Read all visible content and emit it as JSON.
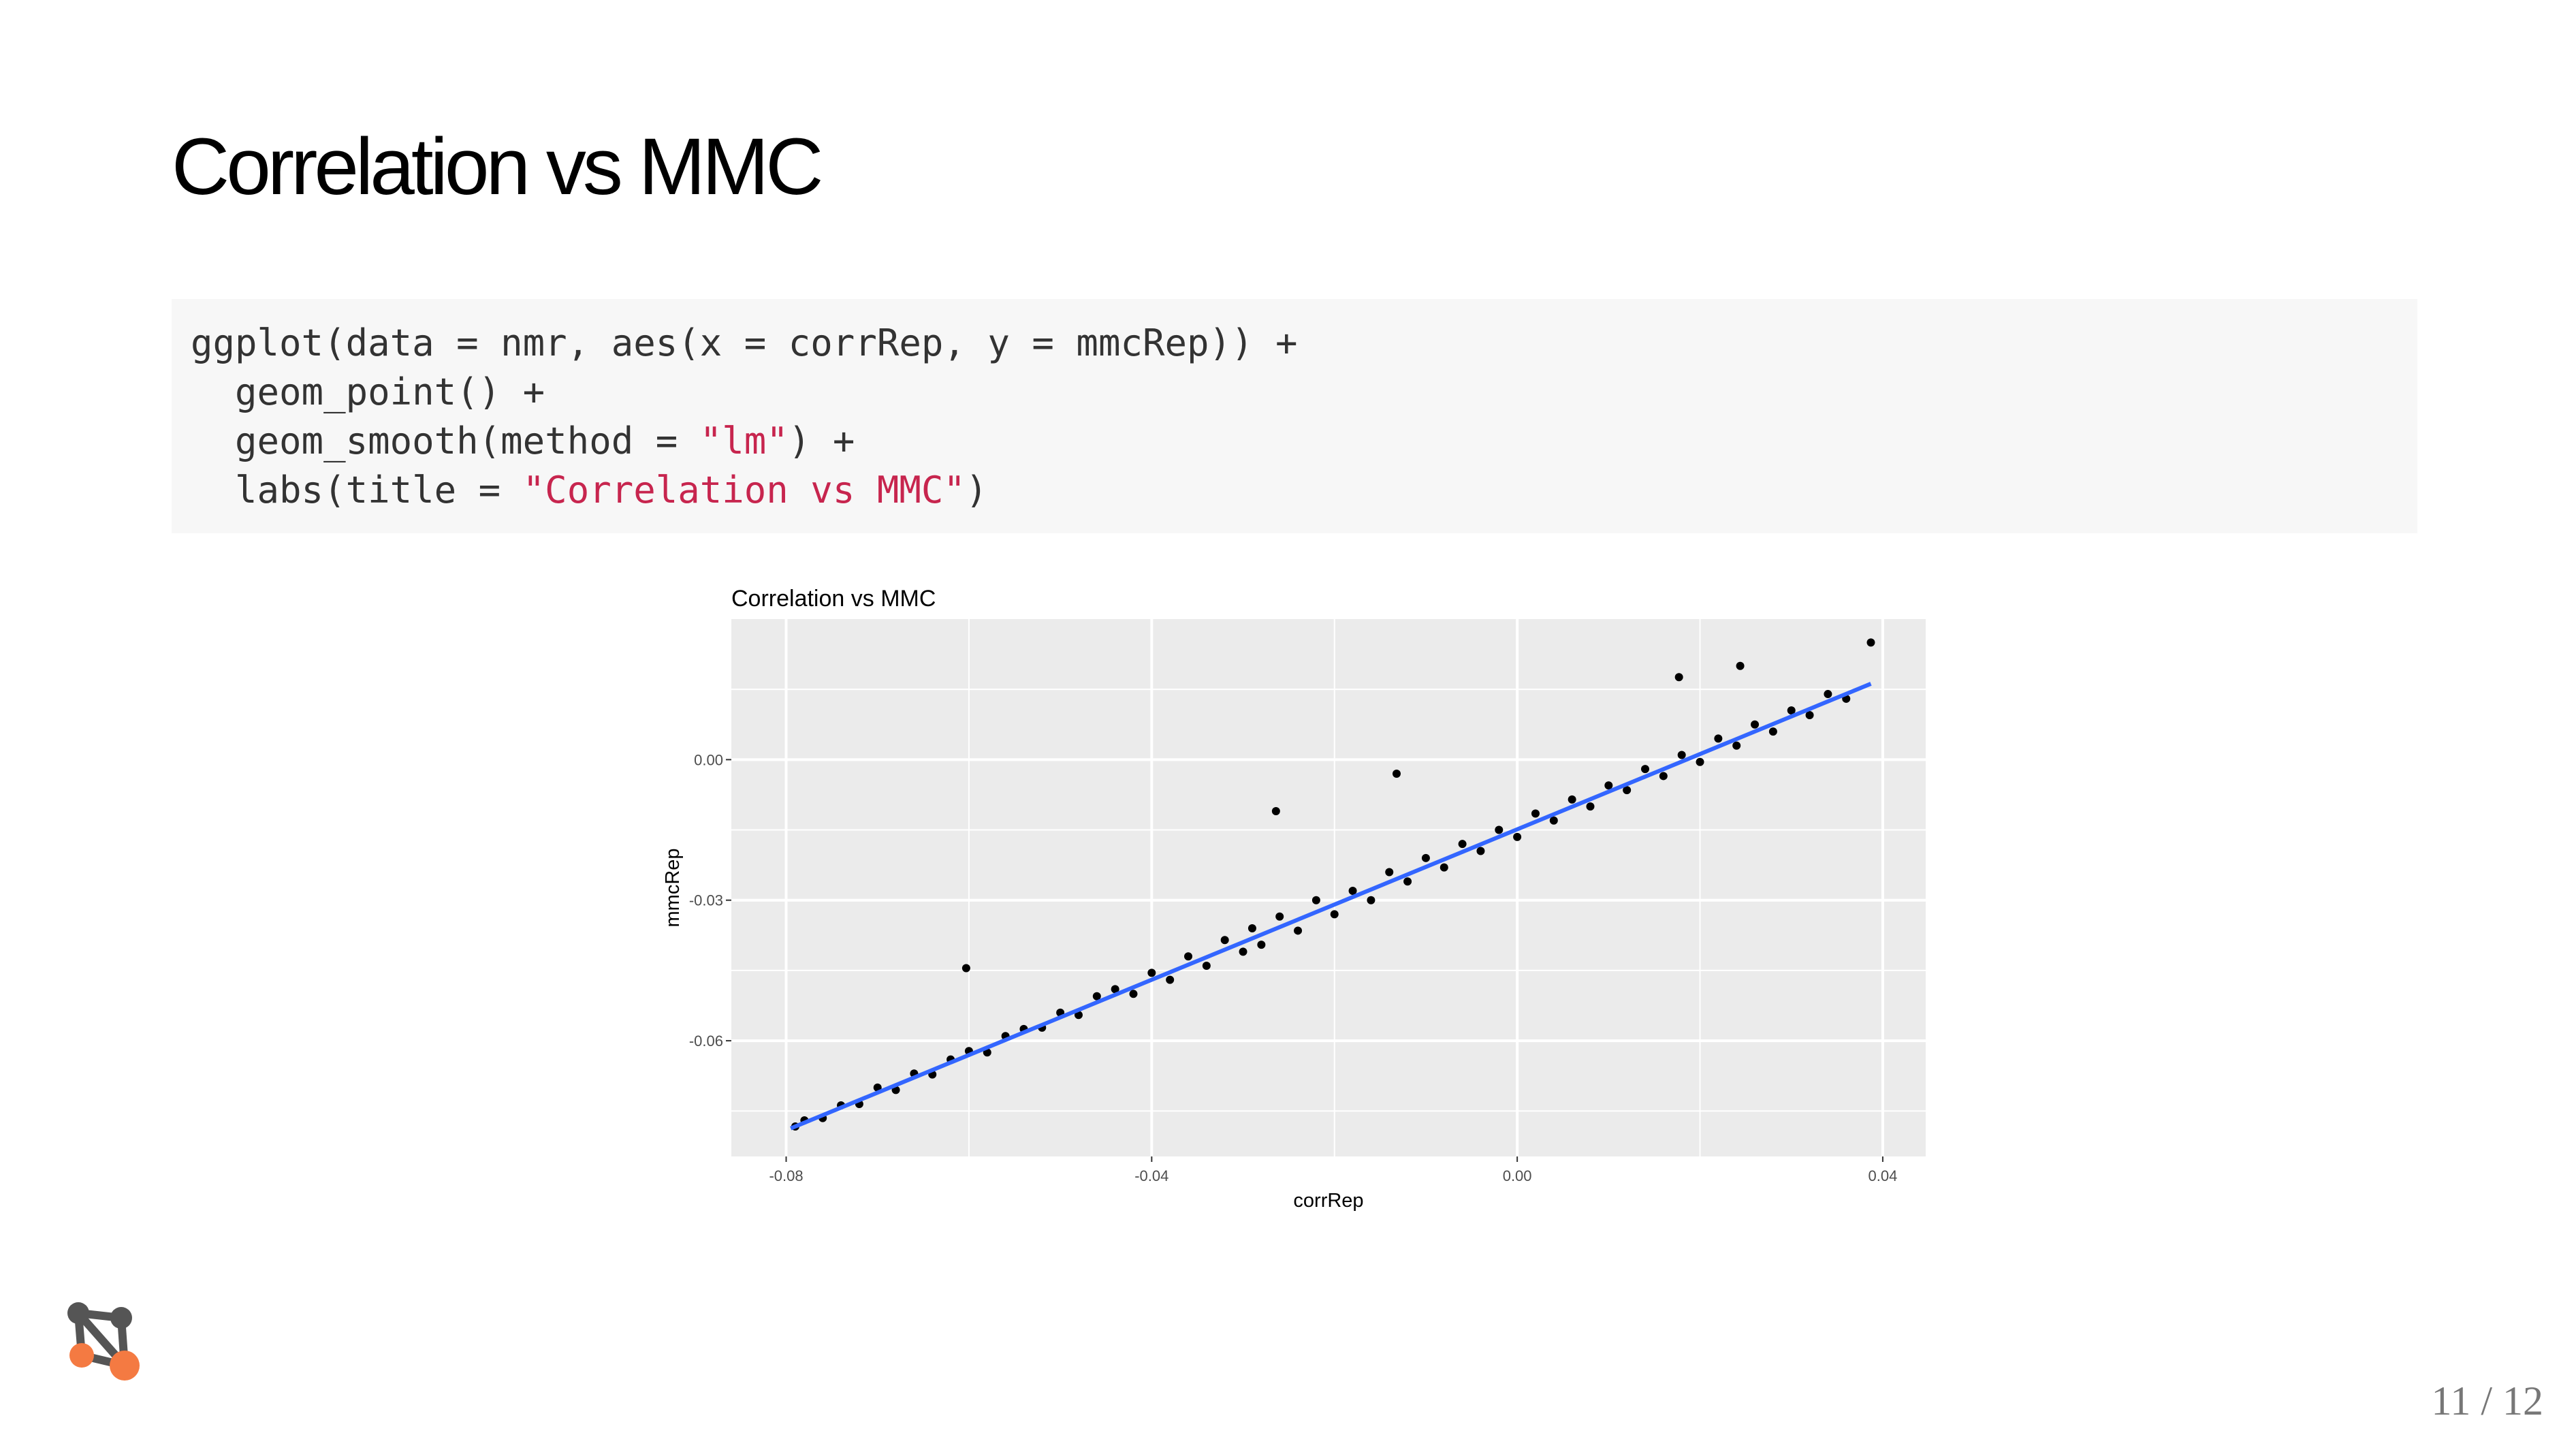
{
  "header": {
    "title": "Correlation vs MMC"
  },
  "code": {
    "lines": [
      [
        "ggplot(data = nmr, aes(x = corrRep, y = mmcRep)) +"
      ],
      [
        "  geom_point() +"
      ],
      [
        "  geom_smooth(method = ",
        "\"lm\"",
        ") +"
      ],
      [
        "  labs(title = ",
        "\"Correlation vs MMC\"",
        ")"
      ]
    ]
  },
  "chart_data": {
    "type": "scatter",
    "title": "Correlation vs MMC",
    "xlabel": "corrRep",
    "ylabel": "mmcRep",
    "xlim": [
      -0.086,
      0.0447
    ],
    "ylim": [
      -0.0847,
      0.03
    ],
    "xticks": [
      -0.08,
      -0.04,
      {
        "value": 0,
        "label": "0.00"
      },
      0.04
    ],
    "yticks": [
      -0.06,
      -0.03,
      {
        "value": 0,
        "label": "0.00"
      }
    ],
    "xminor": [
      -0.06,
      -0.02,
      0.02
    ],
    "yminor": [
      -0.075,
      -0.045,
      -0.015,
      0.015
    ],
    "grid": true,
    "series": [
      {
        "type": "scatter",
        "color": "#000000",
        "x": [
          -0.079,
          -0.078,
          -0.076,
          -0.074,
          -0.072,
          -0.07,
          -0.068,
          -0.066,
          -0.064,
          -0.062,
          -0.0603,
          -0.06,
          -0.058,
          -0.056,
          -0.054,
          -0.052,
          -0.05,
          -0.048,
          -0.046,
          -0.044,
          -0.042,
          -0.04,
          -0.038,
          -0.036,
          -0.034,
          -0.032,
          -0.03,
          -0.029,
          -0.028,
          -0.0264,
          -0.026,
          -0.024,
          -0.022,
          -0.02,
          -0.018,
          -0.016,
          -0.014,
          -0.0132,
          -0.012,
          -0.01,
          -0.008,
          -0.006,
          -0.004,
          -0.002,
          0,
          0.002,
          0.004,
          0.006,
          0.008,
          0.01,
          0.012,
          0.014,
          0.016,
          0.0177,
          0.018,
          0.02,
          0.022,
          0.024,
          0.0244,
          0.026,
          0.028,
          0.03,
          0.032,
          0.034,
          0.036,
          0.0387
        ],
        "values": [
          -0.0783,
          -0.077,
          -0.0765,
          -0.0738,
          -0.0735,
          -0.07,
          -0.0705,
          -0.067,
          -0.0672,
          -0.064,
          -0.0445,
          -0.0622,
          -0.0625,
          -0.059,
          -0.0575,
          -0.0572,
          -0.054,
          -0.0545,
          -0.0505,
          -0.049,
          -0.05,
          -0.0455,
          -0.047,
          -0.042,
          -0.044,
          -0.0385,
          -0.041,
          -0.036,
          -0.0395,
          -0.011,
          -0.0335,
          -0.0365,
          -0.03,
          -0.033,
          -0.028,
          -0.03,
          -0.024,
          -0.003,
          -0.026,
          -0.021,
          -0.023,
          -0.018,
          -0.0195,
          -0.015,
          -0.0165,
          -0.0115,
          -0.013,
          -0.0085,
          -0.01,
          -0.0055,
          -0.0065,
          -0.002,
          -0.0035,
          0.0176,
          0.001,
          -0.0005,
          0.0045,
          0.003,
          0.02,
          0.0075,
          0.006,
          0.0105,
          0.0095,
          0.014,
          0.013,
          0.025
        ]
      },
      {
        "type": "line",
        "color": "#3366ff",
        "x": [
          -0.0795,
          0.0387
        ],
        "values": [
          -0.0787,
          0.0162
        ]
      }
    ]
  },
  "footer": {
    "page": "11 / 12"
  }
}
